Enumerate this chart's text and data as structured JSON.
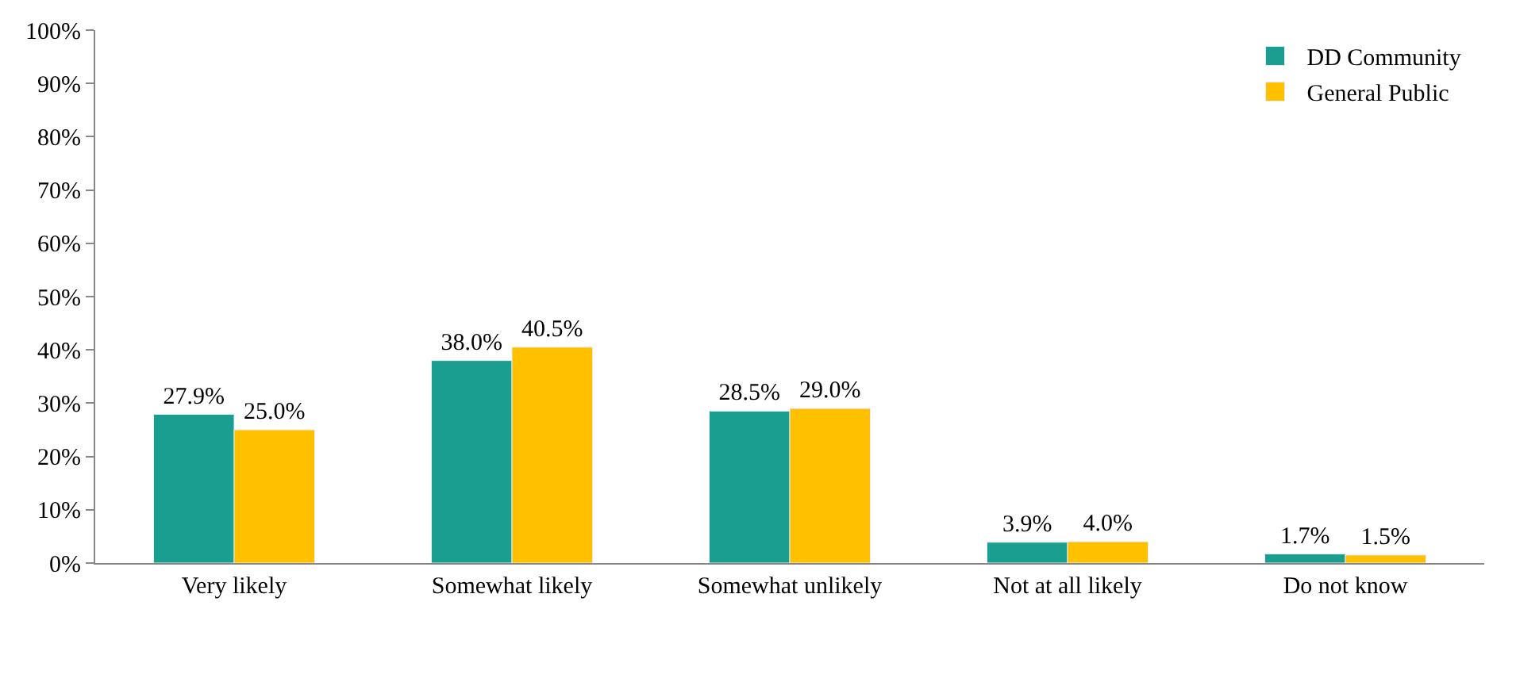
{
  "chart_data": {
    "type": "bar",
    "categories": [
      "Very likely",
      "Somewhat likely",
      "Somewhat unlikely",
      "Not at all likely",
      "Do not know"
    ],
    "series": [
      {
        "name": "DD Community",
        "color": "#1a9e8f",
        "values": [
          27.9,
          38.0,
          28.5,
          3.9,
          1.7
        ],
        "value_labels": [
          "27.9%",
          "38.0%",
          "28.5%",
          "3.9%",
          "1.7%"
        ]
      },
      {
        "name": "General Public",
        "color": "#ffc000",
        "values": [
          25.0,
          40.5,
          29.0,
          4.0,
          1.5
        ],
        "value_labels": [
          "25.0%",
          "40.5%",
          "29.0%",
          "4.0%",
          "1.5%"
        ]
      }
    ],
    "ylim": [
      0,
      100
    ],
    "yticks": [
      {
        "value": 0,
        "label": "0%"
      },
      {
        "value": 10,
        "label": "10%"
      },
      {
        "value": 20,
        "label": "20%"
      },
      {
        "value": 30,
        "label": "30%"
      },
      {
        "value": 40,
        "label": "40%"
      },
      {
        "value": 50,
        "label": "50%"
      },
      {
        "value": 60,
        "label": "60%"
      },
      {
        "value": 70,
        "label": "70%"
      },
      {
        "value": 80,
        "label": "80%"
      },
      {
        "value": 90,
        "label": "90%"
      },
      {
        "value": 100,
        "label": "100%"
      }
    ],
    "legend": "top right"
  }
}
